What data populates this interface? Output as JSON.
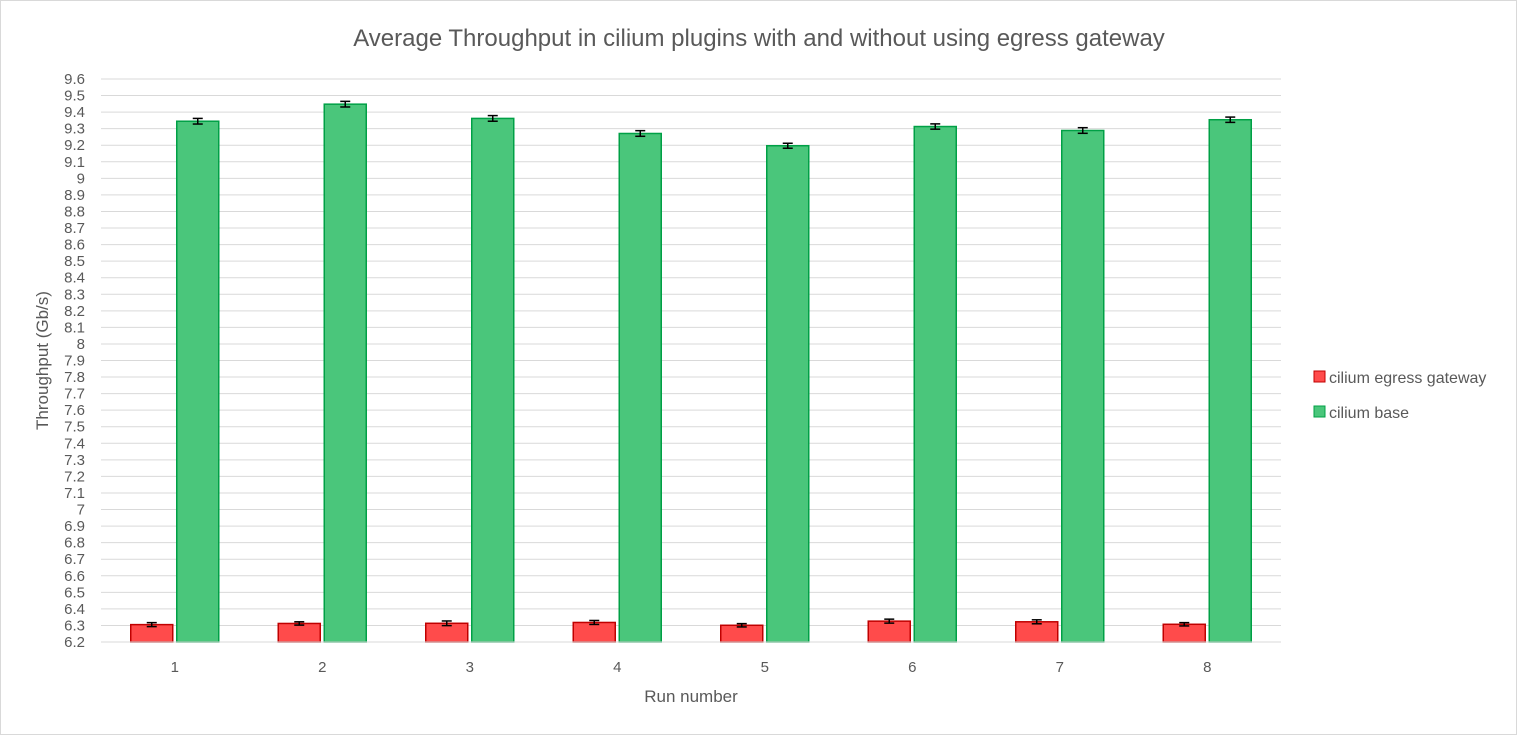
{
  "chart_data": {
    "type": "bar",
    "title": "Average Throughput in cilium plugins with and without using egress gateway",
    "xlabel": "Run number",
    "ylabel": "Throughput (Gb/s)",
    "categories": [
      "1",
      "2",
      "3",
      "4",
      "5",
      "6",
      "7",
      "8"
    ],
    "ylim": [
      6.2,
      9.6
    ],
    "ytick_step": 0.1,
    "yticks": [
      "6.2",
      "6.3",
      "6.4",
      "6.5",
      "6.6",
      "6.7",
      "6.8",
      "6.9",
      "7",
      "7.1",
      "7.2",
      "7.3",
      "7.4",
      "7.5",
      "7.6",
      "7.7",
      "7.8",
      "7.9",
      "8",
      "8.1",
      "8.2",
      "8.3",
      "8.4",
      "8.5",
      "8.6",
      "8.7",
      "8.8",
      "8.9",
      "9",
      "9.1",
      "9.2",
      "9.3",
      "9.4",
      "9.5",
      "9.6"
    ],
    "grid": true,
    "legend_position": "right",
    "error_bars": true,
    "series": [
      {
        "name": "cilium egress gateway",
        "color": "#ff4b4b",
        "stroke": "#c00000",
        "values": [
          6.305,
          6.312,
          6.313,
          6.318,
          6.301,
          6.326,
          6.322,
          6.307
        ],
        "errors": [
          0.012,
          0.01,
          0.014,
          0.012,
          0.01,
          0.012,
          0.012,
          0.01
        ]
      },
      {
        "name": "cilium base",
        "color": "#4ac67b",
        "stroke": "#00a046",
        "values": [
          9.345,
          9.448,
          9.362,
          9.271,
          9.197,
          9.313,
          9.289,
          9.354
        ],
        "errors": [
          0.017,
          0.017,
          0.017,
          0.017,
          0.015,
          0.016,
          0.017,
          0.016
        ]
      }
    ]
  }
}
